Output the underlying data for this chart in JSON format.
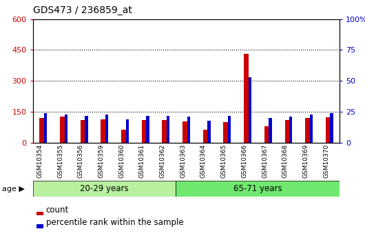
{
  "title": "GDS473 / 236859_at",
  "samples": [
    "GSM10354",
    "GSM10355",
    "GSM10356",
    "GSM10359",
    "GSM10360",
    "GSM10361",
    "GSM10362",
    "GSM10363",
    "GSM10364",
    "GSM10365",
    "GSM10366",
    "GSM10367",
    "GSM10368",
    "GSM10369",
    "GSM10370"
  ],
  "count_values": [
    120,
    128,
    110,
    115,
    65,
    110,
    110,
    105,
    65,
    100,
    430,
    80,
    110,
    120,
    125
  ],
  "percentile_values": [
    24,
    23,
    22,
    23,
    19,
    22,
    22,
    21,
    18,
    22,
    53,
    20,
    21,
    23,
    24
  ],
  "group1_label": "20-29 years",
  "group2_label": "65-71 years",
  "group1_count": 7,
  "group2_count": 8,
  "group1_color": "#b8f0a0",
  "group2_color": "#70e870",
  "count_color": "#cc0000",
  "percentile_color": "#0000cc",
  "ylim_left": [
    0,
    600
  ],
  "ylim_right": [
    0,
    100
  ],
  "yticks_left": [
    0,
    150,
    300,
    450,
    600
  ],
  "yticks_right": [
    0,
    25,
    50,
    75,
    100
  ],
  "ytick_labels_left": [
    "0",
    "150",
    "300",
    "450",
    "600"
  ],
  "ytick_labels_right": [
    "0",
    "25",
    "50",
    "75",
    "100%"
  ],
  "legend_count": "count",
  "legend_pct": "percentile rank within the sample",
  "age_label": "age",
  "background_color": "#ffffff"
}
